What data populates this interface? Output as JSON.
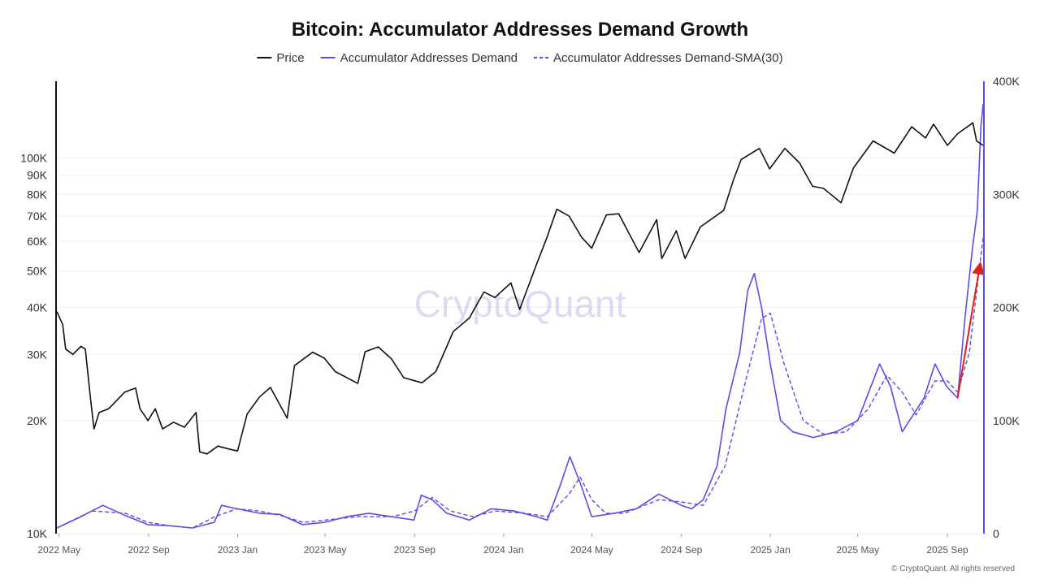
{
  "chart_data": {
    "type": "line",
    "title": "Bitcoin: Accumulator Addresses Demand Growth",
    "watermark": "CryptoQuant",
    "copyright": "© CryptoQuant. All rights reserved",
    "colors": {
      "price": "#111111",
      "demand": "#5a4de6",
      "sma": "#5a4de6",
      "arrow": "#e0201c",
      "right_axis": "#5a4de6",
      "grid": "#eeeeee"
    },
    "x_axis": {
      "range": [
        "2022-04-28",
        "2025-10-20"
      ],
      "tick_labels": [
        {
          "label": "2022 May",
          "date": "2022-05-01"
        },
        {
          "label": "2022 Sep",
          "date": "2022-09-01"
        },
        {
          "label": "2023 Jan",
          "date": "2023-01-01"
        },
        {
          "label": "2023 May",
          "date": "2023-05-01"
        },
        {
          "label": "2023 Sep",
          "date": "2023-09-01"
        },
        {
          "label": "2024 Jan",
          "date": "2024-01-01"
        },
        {
          "label": "2024 May",
          "date": "2024-05-01"
        },
        {
          "label": "2024 Sep",
          "date": "2024-09-01"
        },
        {
          "label": "2025 Jan",
          "date": "2025-01-01"
        },
        {
          "label": "2025 May",
          "date": "2025-05-01"
        },
        {
          "label": "2025 Sep",
          "date": "2025-09-01"
        }
      ]
    },
    "y_left": {
      "scale": "log",
      "range": [
        10000,
        160000
      ],
      "ticks": [
        {
          "label": "10K",
          "value": 10000
        },
        {
          "label": "20K",
          "value": 20000
        },
        {
          "label": "30K",
          "value": 30000
        },
        {
          "label": "40K",
          "value": 40000
        },
        {
          "label": "50K",
          "value": 50000
        },
        {
          "label": "60K",
          "value": 60000
        },
        {
          "label": "70K",
          "value": 70000
        },
        {
          "label": "80K",
          "value": 80000
        },
        {
          "label": "90K",
          "value": 90000
        },
        {
          "label": "100K",
          "value": 100000
        }
      ]
    },
    "y_right": {
      "scale": "linear",
      "range": [
        0,
        400000
      ],
      "ticks": [
        {
          "label": "0",
          "value": 0
        },
        {
          "label": "100K",
          "value": 100000
        },
        {
          "label": "200K",
          "value": 200000
        },
        {
          "label": "300K",
          "value": 300000
        },
        {
          "label": "400K",
          "value": 400000
        }
      ]
    },
    "legend": {
      "position": "top-center",
      "items": [
        {
          "name": "Price",
          "style": "solid",
          "color": "#111111"
        },
        {
          "name": "Accumulator Addresses Demand",
          "style": "solid",
          "color": "#5a4de6"
        },
        {
          "name": "Accumulator Addresses Demand-SMA(30)",
          "style": "dashed",
          "color": "#5a4de6"
        }
      ]
    },
    "series": [
      {
        "name": "Price",
        "axis": "left",
        "points": [
          [
            "2022-04-28",
            39000
          ],
          [
            "2022-05-06",
            36000
          ],
          [
            "2022-05-10",
            31000
          ],
          [
            "2022-05-20",
            30000
          ],
          [
            "2022-05-31",
            31500
          ],
          [
            "2022-06-06",
            31000
          ],
          [
            "2022-06-13",
            23000
          ],
          [
            "2022-06-18",
            19000
          ],
          [
            "2022-06-25",
            21000
          ],
          [
            "2022-07-08",
            21500
          ],
          [
            "2022-07-18",
            22500
          ],
          [
            "2022-07-30",
            23800
          ],
          [
            "2022-08-14",
            24400
          ],
          [
            "2022-08-20",
            21500
          ],
          [
            "2022-08-31",
            20000
          ],
          [
            "2022-09-10",
            21500
          ],
          [
            "2022-09-20",
            19000
          ],
          [
            "2022-10-05",
            19800
          ],
          [
            "2022-10-20",
            19200
          ],
          [
            "2022-11-05",
            21000
          ],
          [
            "2022-11-10",
            16500
          ],
          [
            "2022-11-20",
            16300
          ],
          [
            "2022-12-05",
            17100
          ],
          [
            "2022-12-20",
            16800
          ],
          [
            "2023-01-01",
            16600
          ],
          [
            "2023-01-14",
            20800
          ],
          [
            "2023-01-31",
            23100
          ],
          [
            "2023-02-15",
            24500
          ],
          [
            "2023-03-10",
            20300
          ],
          [
            "2023-03-20",
            28000
          ],
          [
            "2023-04-14",
            30400
          ],
          [
            "2023-04-30",
            29300
          ],
          [
            "2023-05-15",
            27000
          ],
          [
            "2023-06-15",
            25100
          ],
          [
            "2023-06-25",
            30500
          ],
          [
            "2023-07-13",
            31400
          ],
          [
            "2023-07-31",
            29200
          ],
          [
            "2023-08-17",
            26000
          ],
          [
            "2023-09-11",
            25200
          ],
          [
            "2023-09-30",
            27000
          ],
          [
            "2023-10-24",
            34500
          ],
          [
            "2023-11-15",
            37500
          ],
          [
            "2023-12-05",
            44000
          ],
          [
            "2023-12-20",
            42500
          ],
          [
            "2024-01-11",
            46500
          ],
          [
            "2024-01-23",
            39500
          ],
          [
            "2024-02-15",
            52000
          ],
          [
            "2024-02-29",
            61000
          ],
          [
            "2024-03-14",
            73000
          ],
          [
            "2024-03-31",
            70000
          ],
          [
            "2024-04-17",
            61500
          ],
          [
            "2024-05-01",
            57500
          ],
          [
            "2024-05-21",
            70500
          ],
          [
            "2024-06-07",
            71000
          ],
          [
            "2024-07-05",
            56000
          ],
          [
            "2024-07-29",
            68500
          ],
          [
            "2024-08-05",
            54000
          ],
          [
            "2024-08-25",
            64000
          ],
          [
            "2024-09-06",
            54000
          ],
          [
            "2024-09-27",
            65500
          ],
          [
            "2024-10-29",
            72500
          ],
          [
            "2024-11-12",
            88000
          ],
          [
            "2024-11-22",
            99000
          ],
          [
            "2024-12-17",
            106000
          ],
          [
            "2024-12-31",
            93500
          ],
          [
            "2025-01-21",
            106000
          ],
          [
            "2025-02-10",
            97000
          ],
          [
            "2025-02-28",
            84000
          ],
          [
            "2025-03-15",
            83000
          ],
          [
            "2025-04-08",
            76000
          ],
          [
            "2025-04-25",
            94000
          ],
          [
            "2025-05-22",
            111000
          ],
          [
            "2025-06-20",
            103000
          ],
          [
            "2025-07-14",
            121000
          ],
          [
            "2025-08-02",
            113000
          ],
          [
            "2025-08-13",
            123000
          ],
          [
            "2025-09-01",
            108000
          ],
          [
            "2025-09-15",
            116000
          ],
          [
            "2025-10-06",
            124000
          ],
          [
            "2025-10-11",
            111000
          ],
          [
            "2025-10-20",
            108000
          ]
        ]
      },
      {
        "name": "Accumulator Addresses Demand",
        "axis": "right",
        "points": [
          [
            "2022-04-28",
            5000
          ],
          [
            "2022-05-31",
            15000
          ],
          [
            "2022-06-30",
            25000
          ],
          [
            "2022-07-31",
            16000
          ],
          [
            "2022-08-31",
            8000
          ],
          [
            "2022-09-30",
            7000
          ],
          [
            "2022-10-31",
            5000
          ],
          [
            "2022-11-30",
            10000
          ],
          [
            "2022-12-10",
            25000
          ],
          [
            "2022-12-31",
            22000
          ],
          [
            "2023-01-31",
            18000
          ],
          [
            "2023-02-28",
            17000
          ],
          [
            "2023-03-31",
            8000
          ],
          [
            "2023-04-30",
            10000
          ],
          [
            "2023-05-31",
            15000
          ],
          [
            "2023-06-30",
            18000
          ],
          [
            "2023-07-31",
            15000
          ],
          [
            "2023-08-31",
            12000
          ],
          [
            "2023-09-10",
            34000
          ],
          [
            "2023-09-25",
            30000
          ],
          [
            "2023-10-15",
            18000
          ],
          [
            "2023-11-15",
            12000
          ],
          [
            "2023-12-15",
            22000
          ],
          [
            "2024-01-15",
            20000
          ],
          [
            "2024-02-15",
            15000
          ],
          [
            "2024-03-01",
            12000
          ],
          [
            "2024-03-20",
            45000
          ],
          [
            "2024-04-01",
            68000
          ],
          [
            "2024-04-15",
            45000
          ],
          [
            "2024-05-01",
            15000
          ],
          [
            "2024-06-01",
            18000
          ],
          [
            "2024-07-01",
            22000
          ],
          [
            "2024-08-01",
            35000
          ],
          [
            "2024-09-01",
            25000
          ],
          [
            "2024-09-15",
            22000
          ],
          [
            "2024-10-01",
            30000
          ],
          [
            "2024-10-20",
            60000
          ],
          [
            "2024-11-01",
            110000
          ],
          [
            "2024-11-20",
            160000
          ],
          [
            "2024-12-01",
            215000
          ],
          [
            "2024-12-10",
            230000
          ],
          [
            "2024-12-20",
            200000
          ],
          [
            "2025-01-01",
            150000
          ],
          [
            "2025-01-15",
            100000
          ],
          [
            "2025-02-01",
            90000
          ],
          [
            "2025-03-01",
            85000
          ],
          [
            "2025-04-01",
            90000
          ],
          [
            "2025-05-01",
            100000
          ],
          [
            "2025-05-31",
            150000
          ],
          [
            "2025-06-15",
            130000
          ],
          [
            "2025-07-01",
            90000
          ],
          [
            "2025-07-31",
            120000
          ],
          [
            "2025-08-15",
            150000
          ],
          [
            "2025-08-31",
            130000
          ],
          [
            "2025-09-15",
            120000
          ],
          [
            "2025-09-25",
            190000
          ],
          [
            "2025-10-05",
            250000
          ],
          [
            "2025-10-12",
            285000
          ],
          [
            "2025-10-17",
            360000
          ],
          [
            "2025-10-20",
            380000
          ]
        ]
      },
      {
        "name": "Accumulator Addresses Demand-SMA(30)",
        "axis": "right",
        "points": [
          [
            "2022-04-28",
            5000
          ],
          [
            "2022-06-15",
            20000
          ],
          [
            "2022-07-31",
            18000
          ],
          [
            "2022-08-31",
            10000
          ],
          [
            "2022-09-30",
            7000
          ],
          [
            "2022-10-31",
            5000
          ],
          [
            "2022-12-01",
            15000
          ],
          [
            "2022-12-31",
            22000
          ],
          [
            "2023-01-31",
            20000
          ],
          [
            "2023-03-01",
            16000
          ],
          [
            "2023-04-01",
            10000
          ],
          [
            "2023-05-01",
            12000
          ],
          [
            "2023-06-15",
            15000
          ],
          [
            "2023-08-01",
            15000
          ],
          [
            "2023-09-01",
            20000
          ],
          [
            "2023-09-25",
            32000
          ],
          [
            "2023-10-20",
            20000
          ],
          [
            "2023-11-20",
            15000
          ],
          [
            "2023-12-20",
            20000
          ],
          [
            "2024-01-31",
            18000
          ],
          [
            "2024-03-01",
            15000
          ],
          [
            "2024-03-31",
            35000
          ],
          [
            "2024-04-15",
            50000
          ],
          [
            "2024-05-01",
            30000
          ],
          [
            "2024-05-20",
            18000
          ],
          [
            "2024-06-15",
            18000
          ],
          [
            "2024-08-01",
            30000
          ],
          [
            "2024-09-01",
            28000
          ],
          [
            "2024-10-01",
            25000
          ],
          [
            "2024-10-31",
            60000
          ],
          [
            "2024-11-30",
            140000
          ],
          [
            "2024-12-20",
            190000
          ],
          [
            "2025-01-01",
            195000
          ],
          [
            "2025-01-20",
            150000
          ],
          [
            "2025-02-15",
            100000
          ],
          [
            "2025-03-15",
            88000
          ],
          [
            "2025-04-15",
            90000
          ],
          [
            "2025-05-15",
            110000
          ],
          [
            "2025-06-10",
            140000
          ],
          [
            "2025-07-01",
            125000
          ],
          [
            "2025-07-20",
            105000
          ],
          [
            "2025-08-15",
            135000
          ],
          [
            "2025-09-01",
            135000
          ],
          [
            "2025-09-15",
            125000
          ],
          [
            "2025-10-01",
            160000
          ],
          [
            "2025-10-20",
            262000
          ]
        ]
      }
    ],
    "annotations": [
      {
        "type": "arrow",
        "color": "#e0201c",
        "from": [
          "2025-09-15",
          120000
        ],
        "to": [
          "2025-10-15",
          235000
        ]
      }
    ]
  }
}
